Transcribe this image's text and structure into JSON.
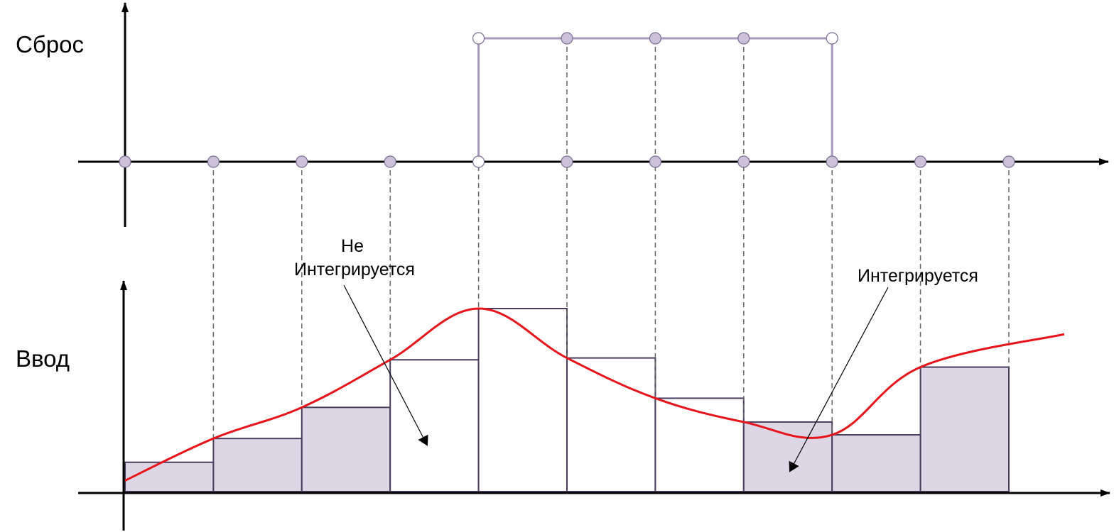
{
  "labels": {
    "reset_axis": "Сброс",
    "input_axis": "Ввод",
    "not_integrated_line1": "Не",
    "not_integrated_line2": "Интегрируется",
    "integrated": "Интегрируется"
  },
  "colors": {
    "axis": "#000000",
    "reset_signal": "#a799bb",
    "sample_dot_fill": "#cbc2d9",
    "sample_dot_stroke": "#7a6c93",
    "open_dot_fill": "#ffffff",
    "bar_fill": "#ddd7e5",
    "bar_stroke": "#4a3d5e",
    "input_curve": "#e8141b",
    "guide": "#666666",
    "arrow": "#000000"
  },
  "diagram": {
    "sample_count": 11,
    "reset": [
      0,
      0,
      0,
      0,
      1,
      1,
      1,
      1,
      0,
      0,
      0
    ],
    "reset_open_dots": [
      4
    ],
    "held_values": [
      0.16,
      0.29,
      0.46,
      0.72,
      1.0,
      0.73,
      0.51,
      0.38,
      0.31,
      0.68
    ],
    "integrated": [
      true,
      true,
      true,
      false,
      false,
      false,
      false,
      true,
      true,
      true
    ],
    "input_curve": [
      0.07,
      0.29,
      0.46,
      0.72,
      1.0,
      0.73,
      0.51,
      0.38,
      0.31,
      0.68,
      0.86
    ]
  }
}
